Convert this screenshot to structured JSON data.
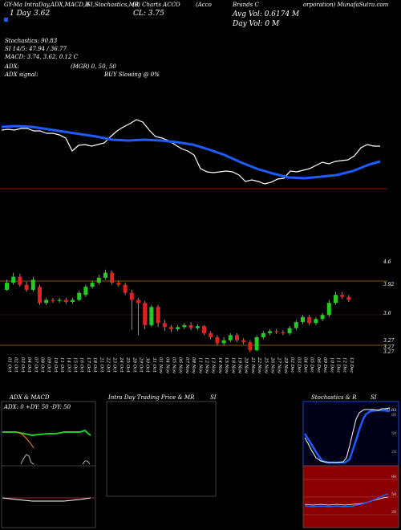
{
  "header": {
    "line1": "GY-Ma IntraDay,ADX,MACD,B",
    "line1b": "SI,Stochastics,MR",
    "line1c": "(0) Charts ACCO",
    "line1d": "(Acco",
    "line1e": "Brands C",
    "line1f": "orporation) MunafaSutra.com",
    "day_label": "1 Day",
    "day_value": "3.62",
    "close_label": "CL: 3.75",
    "avg_vol": "Avg Vol: 0.6174  M",
    "day_vol": "Day Vol: 0   M",
    "stochastics": "Stochastics: 90.83",
    "si": "SI 14/5: 47.94 / 36.77",
    "macd": "MACD: 3.74, 3.62, 0.12  C",
    "adx": "ADX:",
    "adx_mid": "(MGR) 0, 50, 50",
    "adx_signal": "ADX  signal:",
    "buy": "BUY Slowing @ 0%",
    "legend_color": "#1e5cff"
  },
  "price_axis": {
    "labels": [
      "4.6",
      "3.92",
      "3.6",
      "3.27",
      "3.27",
      "3.27"
    ]
  },
  "x_axis": {
    "dates": [
      "01 Oct",
      "02 Oct",
      "03 Oct",
      "04 Oct",
      "07 Oct",
      "08 Oct",
      "09 Oct",
      "10 Oct",
      "11 Oct",
      "14 Oct",
      "15 Oct",
      "16 Oct",
      "17 Oct",
      "18 Oct",
      "21 Oct",
      "22 Oct",
      "23 Oct",
      "24 Oct",
      "25 Oct",
      "28 Oct",
      "29 Oct",
      "30 Oct",
      "31 Oct",
      "01 Nov",
      "04 Nov",
      "05 Nov",
      "06 Nov",
      "07 Nov",
      "08 Nov",
      "11 Nov",
      "12 Nov",
      "13 Nov",
      "14 Nov",
      "15 Nov",
      "18 Nov",
      "19 Nov",
      "20 Nov",
      "21 Nov",
      "22 Nov",
      "25 Nov",
      "26 Nov",
      "27 Nov",
      "29 Nov",
      "02 Dec",
      "03 Dec",
      "04 Dec",
      "05 Dec",
      "06 Dec",
      "09 Dec",
      "10 Dec",
      "11 Dec",
      "12 Dec",
      "13 Dec"
    ]
  },
  "panels": {
    "adx_title": "ADX  & MACD",
    "adx_values": "ADX: 0   +DY: 50   -DY: 50",
    "intra_title": "Intra  Day Trading Price  & MR",
    "intra_si": "SI",
    "stoch_title": "Stochastics & R",
    "stoch_si": "SI",
    "stoch_value_label": "90.83",
    "stoch_axis": [
      "80",
      "50",
      "20"
    ],
    "rsi_axis": [
      "80",
      "50",
      "20"
    ]
  },
  "chart_data": {
    "type": "candlestick",
    "title": "",
    "candles": [
      {
        "o": 3.85,
        "c": 3.92,
        "h": 3.95,
        "l": 3.84
      },
      {
        "o": 3.92,
        "c": 3.98,
        "h": 4.02,
        "l": 3.9
      },
      {
        "o": 3.98,
        "c": 3.9,
        "h": 4.01,
        "l": 3.88
      },
      {
        "o": 3.9,
        "c": 3.85,
        "h": 3.93,
        "l": 3.83
      },
      {
        "o": 3.85,
        "c": 3.95,
        "h": 3.98,
        "l": 3.83
      },
      {
        "o": 3.88,
        "c": 3.72,
        "h": 3.9,
        "l": 3.7
      },
      {
        "o": 3.72,
        "c": 3.75,
        "h": 3.77,
        "l": 3.7
      },
      {
        "o": 3.75,
        "c": 3.74,
        "h": 3.77,
        "l": 3.72
      },
      {
        "o": 3.74,
        "c": 3.75,
        "h": 3.77,
        "l": 3.72
      },
      {
        "o": 3.75,
        "c": 3.73,
        "h": 3.77,
        "l": 3.71
      },
      {
        "o": 3.73,
        "c": 3.75,
        "h": 3.77,
        "l": 3.71
      },
      {
        "o": 3.75,
        "c": 3.82,
        "h": 3.84,
        "l": 3.74
      },
      {
        "o": 3.8,
        "c": 3.88,
        "h": 3.9,
        "l": 3.78
      },
      {
        "o": 3.88,
        "c": 3.92,
        "h": 3.94,
        "l": 3.86
      },
      {
        "o": 3.92,
        "c": 3.97,
        "h": 4.0,
        "l": 3.9
      },
      {
        "o": 3.97,
        "c": 4.02,
        "h": 4.05,
        "l": 3.95
      },
      {
        "o": 4.02,
        "c": 3.92,
        "h": 4.04,
        "l": 3.9
      },
      {
        "o": 3.92,
        "c": 3.9,
        "h": 3.94,
        "l": 3.88
      },
      {
        "o": 3.9,
        "c": 3.82,
        "h": 3.92,
        "l": 3.8
      },
      {
        "o": 3.82,
        "c": 3.75,
        "h": 3.85,
        "l": 3.45
      },
      {
        "o": 3.75,
        "c": 3.72,
        "h": 3.77,
        "l": 3.4
      },
      {
        "o": 3.72,
        "c": 3.5,
        "h": 3.74,
        "l": 3.46
      },
      {
        "o": 3.5,
        "c": 3.68,
        "h": 3.7,
        "l": 3.48
      },
      {
        "o": 3.68,
        "c": 3.52,
        "h": 3.7,
        "l": 3.48
      },
      {
        "o": 3.52,
        "c": 3.48,
        "h": 3.55,
        "l": 3.44
      },
      {
        "o": 3.48,
        "c": 3.46,
        "h": 3.5,
        "l": 3.43
      },
      {
        "o": 3.46,
        "c": 3.48,
        "h": 3.5,
        "l": 3.44
      },
      {
        "o": 3.48,
        "c": 3.5,
        "h": 3.52,
        "l": 3.46
      },
      {
        "o": 3.5,
        "c": 3.47,
        "h": 3.53,
        "l": 3.45
      },
      {
        "o": 3.47,
        "c": 3.49,
        "h": 3.51,
        "l": 3.45
      },
      {
        "o": 3.49,
        "c": 3.42,
        "h": 3.5,
        "l": 3.4
      },
      {
        "o": 3.42,
        "c": 3.38,
        "h": 3.44,
        "l": 3.36
      },
      {
        "o": 3.38,
        "c": 3.32,
        "h": 3.4,
        "l": 3.3
      },
      {
        "o": 3.32,
        "c": 3.35,
        "h": 3.38,
        "l": 3.3
      },
      {
        "o": 3.35,
        "c": 3.4,
        "h": 3.42,
        "l": 3.33
      },
      {
        "o": 3.4,
        "c": 3.35,
        "h": 3.42,
        "l": 3.33
      },
      {
        "o": 3.35,
        "c": 3.33,
        "h": 3.37,
        "l": 3.31
      },
      {
        "o": 3.33,
        "c": 3.25,
        "h": 3.35,
        "l": 3.23
      },
      {
        "o": 3.25,
        "c": 3.38,
        "h": 3.4,
        "l": 3.24
      },
      {
        "o": 3.38,
        "c": 3.42,
        "h": 3.44,
        "l": 3.36
      },
      {
        "o": 3.42,
        "c": 3.44,
        "h": 3.46,
        "l": 3.4
      },
      {
        "o": 3.44,
        "c": 3.43,
        "h": 3.46,
        "l": 3.41
      },
      {
        "o": 3.43,
        "c": 3.42,
        "h": 3.45,
        "l": 3.4
      },
      {
        "o": 3.42,
        "c": 3.47,
        "h": 3.49,
        "l": 3.4
      },
      {
        "o": 3.47,
        "c": 3.53,
        "h": 3.55,
        "l": 3.45
      },
      {
        "o": 3.53,
        "c": 3.58,
        "h": 3.6,
        "l": 3.51
      },
      {
        "o": 3.58,
        "c": 3.52,
        "h": 3.6,
        "l": 3.5
      },
      {
        "o": 3.52,
        "c": 3.56,
        "h": 3.58,
        "l": 3.5
      },
      {
        "o": 3.56,
        "c": 3.6,
        "h": 3.62,
        "l": 3.54
      },
      {
        "o": 3.6,
        "c": 3.72,
        "h": 3.75,
        "l": 3.58
      },
      {
        "o": 3.72,
        "c": 3.8,
        "h": 3.83,
        "l": 3.7
      },
      {
        "o": 3.8,
        "c": 3.78,
        "h": 3.83,
        "l": 3.76
      },
      {
        "o": 3.78,
        "c": 3.75,
        "h": 3.8,
        "l": 3.73
      }
    ],
    "ylim": [
      3.22,
      4.16
    ],
    "colors": {
      "up": "#22cc22",
      "down": "#dd2222"
    }
  }
}
